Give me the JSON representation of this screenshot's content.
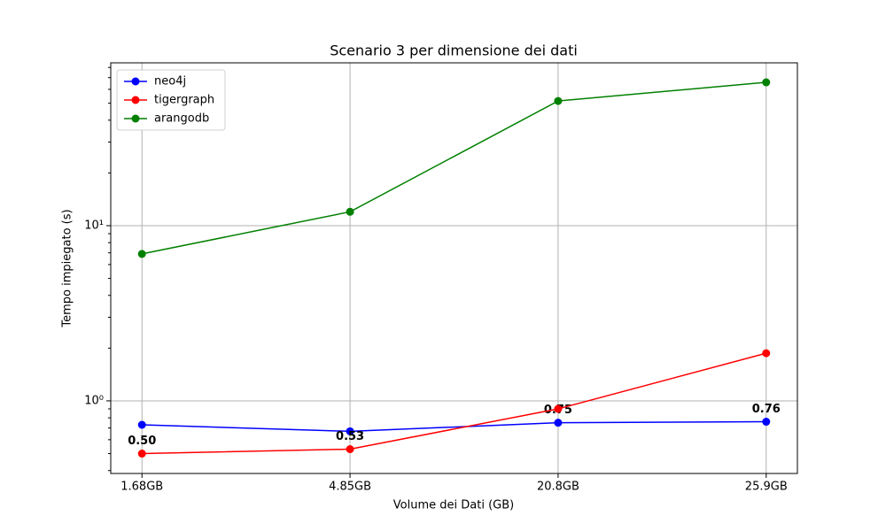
{
  "chart_data": {
    "type": "line",
    "title": "Scenario 3 per dimensione dei dati",
    "x_label": "Volume dei Dati (GB)",
    "y_label": "Tempo impiegato (s)",
    "categories": [
      "1.68GB",
      "4.85GB",
      "20.8GB",
      "25.9GB"
    ],
    "log_y": true,
    "grid": true,
    "legend": "upper left",
    "ylim": [
      0.385,
      85
    ],
    "yticks": [
      {
        "value": 1,
        "label": "10⁰"
      },
      {
        "value": 10,
        "label": "10¹"
      }
    ],
    "series": [
      {
        "name": "neo4j",
        "color": "#0000ff",
        "values": [
          0.73,
          0.67,
          0.75,
          0.76
        ],
        "value_labels": [
          null,
          null,
          "0.75",
          "0.76"
        ]
      },
      {
        "name": "tigergraph",
        "color": "#ff0000",
        "values": [
          0.5,
          0.53,
          0.9,
          1.87
        ],
        "value_labels": [
          "0.50",
          "0.53",
          null,
          null
        ]
      },
      {
        "name": "arangodb",
        "color": "#008000",
        "values": [
          6.9,
          12.0,
          51.5,
          65.8
        ]
      }
    ]
  }
}
